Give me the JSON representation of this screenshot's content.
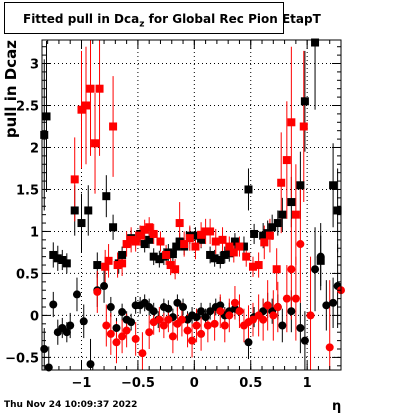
{
  "title": {
    "prefix": "Fitted pull in Dca",
    "sub": "z",
    "suffix": " for Global Rec Pion EtapT"
  },
  "footer": "Thu Nov 24 10:09:37 2022",
  "chart_data": {
    "type": "scatter",
    "title": "Fitted pull in Dcaz for Global Rec Pion EtapT",
    "xlabel": "η",
    "ylabel": "pull in Dcaz",
    "xlim": [
      -1.35,
      1.3
    ],
    "ylim": [
      -0.65,
      3.28
    ],
    "x_ticks": [
      -1,
      -0.5,
      0,
      0.5,
      1
    ],
    "x_tick_labels": [
      "−1",
      "−0.5",
      "0",
      "0.5",
      "1"
    ],
    "y_ticks": [
      -0.5,
      0,
      0.5,
      1,
      1.5,
      2,
      2.5,
      3
    ],
    "y_tick_labels": [
      "−0.5",
      "0",
      "0.5",
      "1",
      "1.5",
      "2",
      "2.5",
      "3"
    ],
    "grid": true,
    "colors": {
      "black_series": "#000000",
      "red_series": "#ff0000"
    },
    "series": [
      {
        "color": "black",
        "marker": "square",
        "points": [
          [
            -1.33,
            2.15,
            0.9
          ],
          [
            -1.31,
            2.37,
            0.9
          ],
          [
            -1.25,
            0.72,
            0.15
          ],
          [
            -1.21,
            0.68,
            0.15
          ],
          [
            -1.17,
            0.66,
            0.12
          ],
          [
            -1.13,
            0.62,
            0.12
          ],
          [
            -1.06,
            1.25,
            0.3
          ],
          [
            -1.0,
            1.1,
            0.35
          ],
          [
            -0.94,
            1.25,
            0.3
          ],
          [
            -0.86,
            0.6,
            0.15
          ],
          [
            -0.78,
            1.42,
            0.25
          ],
          [
            -0.72,
            1.05,
            0.15
          ],
          [
            -0.67,
            0.62,
            0.12
          ],
          [
            -0.64,
            0.72,
            0.1
          ],
          [
            -0.56,
            0.92,
            0.1
          ],
          [
            -0.48,
            0.97,
            0.1
          ],
          [
            -0.44,
            0.85,
            0.1
          ],
          [
            -0.4,
            0.9,
            0.1
          ],
          [
            -0.36,
            0.7,
            0.1
          ],
          [
            -0.31,
            0.67,
            0.1
          ],
          [
            -0.27,
            0.7,
            0.1
          ],
          [
            -0.23,
            0.75,
            0.1
          ],
          [
            -0.19,
            0.73,
            0.1
          ],
          [
            -0.16,
            0.82,
            0.1
          ],
          [
            -0.13,
            0.88,
            0.1
          ],
          [
            -0.09,
            0.82,
            0.1
          ],
          [
            -0.04,
            0.95,
            0.1
          ],
          [
            0.01,
            0.95,
            0.1
          ],
          [
            0.06,
            0.9,
            0.1
          ],
          [
            0.14,
            0.72,
            0.1
          ],
          [
            0.18,
            0.68,
            0.1
          ],
          [
            0.23,
            0.66,
            0.1
          ],
          [
            0.27,
            0.72,
            0.1
          ],
          [
            0.31,
            0.74,
            0.1
          ],
          [
            0.36,
            0.88,
            0.1
          ],
          [
            0.44,
            0.82,
            0.12
          ],
          [
            0.48,
            1.5,
            0.25
          ],
          [
            0.53,
            0.97,
            0.12
          ],
          [
            0.61,
            0.95,
            0.15
          ],
          [
            0.65,
            0.98,
            0.15
          ],
          [
            0.69,
            1.05,
            0.15
          ],
          [
            0.74,
            1.1,
            0.15
          ],
          [
            0.78,
            1.2,
            0.2
          ],
          [
            0.86,
            1.35,
            0.3
          ],
          [
            0.94,
            1.55,
            0.4
          ],
          [
            0.98,
            2.55,
            0.6
          ],
          [
            1.07,
            3.25,
            0.8
          ],
          [
            1.12,
            0.65,
            0.3
          ],
          [
            1.23,
            1.55,
            0.5
          ],
          [
            1.27,
            1.25,
            0.5
          ]
        ]
      },
      {
        "color": "black",
        "marker": "circle",
        "points": [
          [
            -1.33,
            -0.4,
            0.25
          ],
          [
            -1.29,
            -0.62,
            0.25
          ],
          [
            -1.25,
            0.13,
            0.15
          ],
          [
            -1.21,
            -0.2,
            0.15
          ],
          [
            -1.17,
            -0.15,
            0.12
          ],
          [
            -1.13,
            -0.2,
            0.12
          ],
          [
            -1.1,
            -0.12,
            0.15
          ],
          [
            -1.04,
            0.25,
            0.2
          ],
          [
            -0.98,
            -0.07,
            0.2
          ],
          [
            -0.92,
            -0.58,
            0.3
          ],
          [
            -0.86,
            0.3,
            0.2
          ],
          [
            -0.8,
            0.35,
            0.2
          ],
          [
            -0.74,
            0.1,
            0.12
          ],
          [
            -0.69,
            -0.15,
            0.12
          ],
          [
            -0.64,
            0.04,
            0.1
          ],
          [
            -0.6,
            -0.05,
            0.1
          ],
          [
            -0.56,
            -0.08,
            0.1
          ],
          [
            -0.52,
            0.12,
            0.1
          ],
          [
            -0.48,
            0.12,
            0.1
          ],
          [
            -0.44,
            0.15,
            0.1
          ],
          [
            -0.4,
            0.1,
            0.1
          ],
          [
            -0.36,
            0.05,
            0.1
          ],
          [
            -0.32,
            -0.05,
            0.1
          ],
          [
            -0.27,
            0.1,
            0.1
          ],
          [
            -0.23,
            0.08,
            0.1
          ],
          [
            -0.19,
            -0.02,
            0.1
          ],
          [
            -0.15,
            0.15,
            0.1
          ],
          [
            -0.1,
            0.1,
            0.1
          ],
          [
            -0.06,
            -0.05,
            0.1
          ],
          [
            -0.02,
            0.0,
            0.1
          ],
          [
            0.02,
            -0.02,
            0.1
          ],
          [
            0.06,
            0.05,
            0.1
          ],
          [
            0.1,
            -0.02,
            0.1
          ],
          [
            0.14,
            0.05,
            0.1
          ],
          [
            0.19,
            0.1,
            0.1
          ],
          [
            0.23,
            0.12,
            0.1
          ],
          [
            0.27,
            0.0,
            0.1
          ],
          [
            0.31,
            0.05,
            0.1
          ],
          [
            0.36,
            0.08,
            0.12
          ],
          [
            0.4,
            0.05,
            0.12
          ],
          [
            0.48,
            -0.32,
            0.2
          ],
          [
            0.53,
            -0.02,
            0.12
          ],
          [
            0.61,
            0.05,
            0.15
          ],
          [
            0.65,
            0.12,
            0.15
          ],
          [
            0.69,
            0.05,
            0.15
          ],
          [
            0.74,
            0.1,
            0.15
          ],
          [
            0.78,
            -0.12,
            0.2
          ],
          [
            0.86,
            0.05,
            0.25
          ],
          [
            0.94,
            -0.15,
            0.3
          ],
          [
            0.98,
            -0.3,
            0.35
          ],
          [
            1.07,
            0.55,
            0.5
          ],
          [
            1.12,
            0.7,
            0.4
          ],
          [
            1.17,
            0.12,
            0.3
          ],
          [
            1.23,
            0.15,
            0.3
          ],
          [
            1.27,
            0.35,
            0.5
          ]
        ]
      },
      {
        "color": "red",
        "marker": "square",
        "points": [
          [
            -1.06,
            1.62,
            0.5
          ],
          [
            -1.0,
            2.45,
            0.7
          ],
          [
            -0.96,
            2.5,
            0.7
          ],
          [
            -0.92,
            2.7,
            0.8
          ],
          [
            -0.88,
            2.05,
            0.6
          ],
          [
            -0.84,
            2.7,
            0.8
          ],
          [
            -0.79,
            0.58,
            0.2
          ],
          [
            -0.76,
            0.65,
            0.2
          ],
          [
            -0.72,
            2.25,
            0.6
          ],
          [
            -0.68,
            0.6,
            0.15
          ],
          [
            -0.64,
            0.62,
            0.15
          ],
          [
            -0.6,
            0.85,
            0.15
          ],
          [
            -0.56,
            0.9,
            0.15
          ],
          [
            -0.52,
            0.88,
            0.12
          ],
          [
            -0.48,
            0.95,
            0.12
          ],
          [
            -0.44,
            1.02,
            0.12
          ],
          [
            -0.4,
            1.05,
            0.12
          ],
          [
            -0.36,
            0.97,
            0.12
          ],
          [
            -0.3,
            0.88,
            0.12
          ],
          [
            -0.25,
            0.72,
            0.12
          ],
          [
            -0.21,
            0.6,
            0.12
          ],
          [
            -0.17,
            0.55,
            0.12
          ],
          [
            -0.13,
            1.1,
            0.25
          ],
          [
            -0.09,
            0.85,
            0.15
          ],
          [
            -0.04,
            0.92,
            0.15
          ],
          [
            0.01,
            0.82,
            0.15
          ],
          [
            0.06,
            0.96,
            0.15
          ],
          [
            0.1,
            1.0,
            0.15
          ],
          [
            0.14,
            1.0,
            0.15
          ],
          [
            0.19,
            0.88,
            0.15
          ],
          [
            0.25,
            0.9,
            0.15
          ],
          [
            0.31,
            0.82,
            0.12
          ],
          [
            0.35,
            0.75,
            0.12
          ],
          [
            0.4,
            0.82,
            0.12
          ],
          [
            0.46,
            0.7,
            0.12
          ],
          [
            0.52,
            0.58,
            0.12
          ],
          [
            0.57,
            0.6,
            0.15
          ],
          [
            0.62,
            0.87,
            0.2
          ],
          [
            0.67,
            0.95,
            0.2
          ],
          [
            0.73,
            0.55,
            0.25
          ],
          [
            0.77,
            1.58,
            0.6
          ],
          [
            0.82,
            1.85,
            0.7
          ],
          [
            0.86,
            2.3,
            0.9
          ],
          [
            0.9,
            1.2,
            0.6
          ],
          [
            0.97,
            2.25,
            0.9
          ]
        ]
      },
      {
        "color": "red",
        "marker": "circle",
        "points": [
          [
            -0.86,
            0.28,
            0.25
          ],
          [
            -0.78,
            -0.12,
            0.25
          ],
          [
            -0.74,
            -0.22,
            0.25
          ],
          [
            -0.69,
            -0.32,
            0.25
          ],
          [
            -0.64,
            -0.25,
            0.2
          ],
          [
            -0.6,
            -0.18,
            0.2
          ],
          [
            -0.52,
            -0.28,
            0.2
          ],
          [
            -0.46,
            -0.45,
            0.25
          ],
          [
            -0.4,
            -0.2,
            0.2
          ],
          [
            -0.36,
            -0.08,
            0.15
          ],
          [
            -0.31,
            -0.05,
            0.15
          ],
          [
            -0.27,
            -0.12,
            0.15
          ],
          [
            -0.23,
            -0.05,
            0.15
          ],
          [
            -0.19,
            -0.25,
            0.2
          ],
          [
            -0.15,
            -0.1,
            0.2
          ],
          [
            -0.11,
            -0.05,
            0.2
          ],
          [
            -0.06,
            -0.18,
            0.2
          ],
          [
            -0.02,
            -0.3,
            0.2
          ],
          [
            0.02,
            -0.12,
            0.2
          ],
          [
            0.06,
            -0.22,
            0.2
          ],
          [
            0.12,
            -0.12,
            0.2
          ],
          [
            0.18,
            -0.1,
            0.2
          ],
          [
            0.23,
            0.05,
            0.2
          ],
          [
            0.27,
            -0.12,
            0.2
          ],
          [
            0.31,
            0.0,
            0.2
          ],
          [
            0.36,
            0.15,
            0.2
          ],
          [
            0.4,
            0.05,
            0.2
          ],
          [
            0.44,
            -0.12,
            0.2
          ],
          [
            0.48,
            -0.08,
            0.2
          ],
          [
            0.52,
            -0.05,
            0.2
          ],
          [
            0.57,
            0.0,
            0.25
          ],
          [
            0.61,
            -0.05,
            0.25
          ],
          [
            0.65,
            0.12,
            0.3
          ],
          [
            0.7,
            0.0,
            0.3
          ],
          [
            0.74,
            0.1,
            0.3
          ],
          [
            0.82,
            0.2,
            0.4
          ],
          [
            0.86,
            0.55,
            0.6
          ],
          [
            0.9,
            0.2,
            0.5
          ],
          [
            0.94,
            0.85,
            0.7
          ],
          [
            1.03,
            0.0,
            0.7
          ],
          [
            1.2,
            -0.38,
            0.8
          ],
          [
            1.3,
            0.3,
            0.8
          ]
        ]
      }
    ]
  }
}
